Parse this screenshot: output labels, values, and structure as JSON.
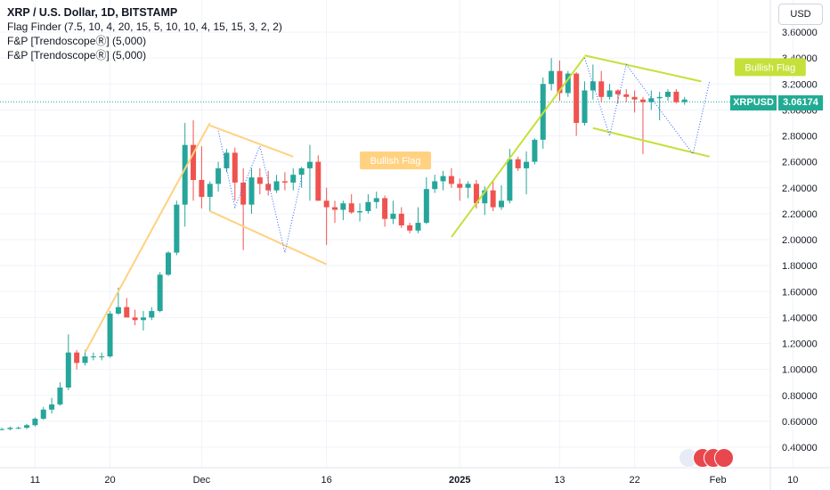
{
  "header": {
    "title": "XRP / U.S. Dollar, 1D, BITSTAMP",
    "indicators": [
      "Flag Finder (7.5, 10, 4, 20, 15, 5, 10, 10, 4, 15, 15, 3, 2, 2)",
      "F&P [TrendoscopeⓇ] (5,000)",
      "F&P [TrendoscopeⓇ] (5,000)"
    ]
  },
  "currency": "USD",
  "last_price": {
    "symbol": "XRPUSD",
    "value": "3.06174"
  },
  "colors": {
    "up": "#26a69a",
    "down": "#ef5350",
    "flag1": "#ffd180",
    "flag2": "#c6e03a",
    "last_price": "#22ab94",
    "grid": "#f0f3fa"
  },
  "chart_data": {
    "type": "candlestick",
    "title": "XRP / U.S. Dollar, 1D, BITSTAMP",
    "ylim": [
      0.3,
      4.0
    ],
    "yticks": [
      "3.60000",
      "3.40000",
      "3.20000",
      "3.00000",
      "2.80000",
      "2.60000",
      "2.40000",
      "2.20000",
      "2.00000",
      "1.80000",
      "1.60000",
      "1.40000",
      "1.20000",
      "1.00000",
      "0.80000",
      "0.60000",
      "0.40000"
    ],
    "xticks": [
      {
        "label": "11",
        "date": "2024-11-11"
      },
      {
        "label": "20",
        "date": "2024-11-20"
      },
      {
        "label": "Dec",
        "date": "2024-12-01"
      },
      {
        "label": "16",
        "date": "2024-12-16"
      },
      {
        "label": "2025",
        "date": "2025-01-01"
      },
      {
        "label": "13",
        "date": "2025-01-13"
      },
      {
        "label": "22",
        "date": "2025-01-22"
      },
      {
        "label": "Feb",
        "date": "2025-02-01"
      },
      {
        "label": "10",
        "date": "2025-02-10"
      }
    ],
    "start_date": "2024-11-07",
    "candles": [
      [
        0.54,
        0.55,
        0.53,
        0.54
      ],
      [
        0.54,
        0.56,
        0.53,
        0.55
      ],
      [
        0.55,
        0.56,
        0.54,
        0.55
      ],
      [
        0.55,
        0.58,
        0.54,
        0.57
      ],
      [
        0.57,
        0.63,
        0.56,
        0.62
      ],
      [
        0.62,
        0.71,
        0.61,
        0.69
      ],
      [
        0.69,
        0.78,
        0.66,
        0.73
      ],
      [
        0.73,
        0.9,
        0.72,
        0.86
      ],
      [
        0.86,
        1.27,
        0.84,
        1.13
      ],
      [
        1.13,
        1.15,
        1.0,
        1.05
      ],
      [
        1.05,
        1.15,
        1.03,
        1.1
      ],
      [
        1.1,
        1.13,
        1.07,
        1.1
      ],
      [
        1.1,
        1.13,
        1.07,
        1.1
      ],
      [
        1.1,
        1.45,
        1.09,
        1.43
      ],
      [
        1.43,
        1.63,
        1.42,
        1.48
      ],
      [
        1.48,
        1.55,
        1.41,
        1.4
      ],
      [
        1.4,
        1.46,
        1.34,
        1.38
      ],
      [
        1.38,
        1.45,
        1.3,
        1.4
      ],
      [
        1.4,
        1.48,
        1.38,
        1.45
      ],
      [
        1.45,
        1.75,
        1.44,
        1.73
      ],
      [
        1.73,
        1.91,
        1.72,
        1.9
      ],
      [
        1.9,
        2.3,
        1.88,
        2.27
      ],
      [
        2.27,
        2.9,
        2.1,
        2.73
      ],
      [
        2.73,
        2.92,
        2.3,
        2.46
      ],
      [
        2.46,
        2.72,
        2.24,
        2.33
      ],
      [
        2.33,
        2.45,
        2.22,
        2.43
      ],
      [
        2.43,
        2.6,
        2.37,
        2.55
      ],
      [
        2.55,
        2.7,
        2.52,
        2.67
      ],
      [
        2.67,
        2.71,
        2.3,
        2.44
      ],
      [
        2.44,
        2.55,
        1.92,
        2.27
      ],
      [
        2.27,
        2.55,
        2.2,
        2.48
      ],
      [
        2.48,
        2.55,
        2.35,
        2.43
      ],
      [
        2.43,
        2.53,
        2.34,
        2.38
      ],
      [
        2.38,
        2.5,
        2.36,
        2.45
      ],
      [
        2.45,
        2.52,
        2.38,
        2.44
      ],
      [
        2.44,
        2.55,
        2.38,
        2.5
      ],
      [
        2.5,
        2.56,
        2.4,
        2.55
      ],
      [
        2.55,
        2.73,
        2.3,
        2.6
      ],
      [
        2.6,
        2.65,
        2.3,
        2.3
      ],
      [
        2.3,
        2.4,
        1.96,
        2.25
      ],
      [
        2.25,
        2.3,
        2.13,
        2.23
      ],
      [
        2.23,
        2.3,
        2.15,
        2.28
      ],
      [
        2.28,
        2.35,
        2.2,
        2.21
      ],
      [
        2.21,
        2.28,
        2.14,
        2.22
      ],
      [
        2.22,
        2.35,
        2.2,
        2.29
      ],
      [
        2.29,
        2.37,
        2.24,
        2.32
      ],
      [
        2.32,
        2.34,
        2.1,
        2.16
      ],
      [
        2.16,
        2.3,
        2.12,
        2.2
      ],
      [
        2.2,
        2.25,
        2.09,
        2.11
      ],
      [
        2.11,
        2.13,
        2.05,
        2.07
      ],
      [
        2.07,
        2.25,
        2.05,
        2.13
      ],
      [
        2.13,
        2.48,
        2.12,
        2.39
      ],
      [
        2.39,
        2.5,
        2.36,
        2.45
      ],
      [
        2.45,
        2.53,
        2.38,
        2.49
      ],
      [
        2.49,
        2.55,
        2.4,
        2.43
      ],
      [
        2.43,
        2.47,
        2.3,
        2.4
      ],
      [
        2.4,
        2.45,
        2.32,
        2.43
      ],
      [
        2.43,
        2.46,
        2.24,
        2.28
      ],
      [
        2.28,
        2.41,
        2.19,
        2.38
      ],
      [
        2.38,
        2.45,
        2.22,
        2.25
      ],
      [
        2.25,
        2.42,
        2.23,
        2.3
      ],
      [
        2.3,
        2.7,
        2.28,
        2.62
      ],
      [
        2.62,
        2.64,
        2.53,
        2.55
      ],
      [
        2.55,
        2.68,
        2.35,
        2.6
      ],
      [
        2.6,
        2.78,
        2.58,
        2.77
      ],
      [
        2.77,
        3.25,
        2.7,
        3.2
      ],
      [
        3.2,
        3.4,
        3.15,
        3.3
      ],
      [
        3.3,
        3.38,
        3.07,
        3.13
      ],
      [
        3.13,
        3.3,
        3.1,
        3.28
      ],
      [
        3.28,
        3.29,
        2.8,
        2.9
      ],
      [
        2.9,
        3.22,
        2.88,
        3.15
      ],
      [
        3.15,
        3.35,
        3.08,
        3.22
      ],
      [
        3.22,
        3.3,
        3.06,
        3.1
      ],
      [
        3.1,
        3.2,
        3.08,
        3.15
      ],
      [
        3.15,
        3.16,
        3.05,
        3.12
      ],
      [
        3.12,
        3.16,
        3.06,
        3.1
      ],
      [
        3.1,
        3.15,
        2.98,
        3.08
      ],
      [
        3.08,
        3.1,
        2.66,
        3.06
      ],
      [
        3.06,
        3.15,
        3.0,
        3.09
      ],
      [
        3.09,
        3.14,
        2.92,
        3.1
      ],
      [
        3.1,
        3.16,
        3.07,
        3.14
      ],
      [
        3.14,
        3.16,
        3.05,
        3.06
      ],
      [
        3.06,
        3.1,
        3.04,
        3.08
      ]
    ],
    "flags": [
      {
        "label": "Bullish Flag",
        "color": "#ffd180",
        "pole": [
          [
            "2024-11-17",
            1.13
          ],
          [
            "2024-12-02",
            2.9
          ]
        ],
        "upper": [
          [
            "2024-12-02",
            2.88
          ],
          [
            "2024-12-12",
            2.64
          ]
        ],
        "lower": [
          [
            "2024-12-02",
            2.22
          ],
          [
            "2024-12-16",
            1.81
          ]
        ],
        "zigzag": [
          [
            "2024-12-03",
            2.84
          ],
          [
            "2024-12-05",
            2.25
          ],
          [
            "2024-12-08",
            2.72
          ],
          [
            "2024-12-11",
            1.9
          ],
          [
            "2024-12-13",
            2.48
          ]
        ],
        "label_at": [
          "2024-12-20",
          2.61
        ]
      },
      {
        "label": "Bullish Flag",
        "color": "#c6e03a",
        "pole": [
          [
            "2024-12-31",
            2.02
          ],
          [
            "2025-01-16",
            3.41
          ]
        ],
        "upper": [
          [
            "2025-01-16",
            3.42
          ],
          [
            "2025-01-30",
            3.22
          ]
        ],
        "lower": [
          [
            "2025-01-17",
            2.86
          ],
          [
            "2025-01-31",
            2.64
          ]
        ],
        "zigzag": [
          [
            "2025-01-16",
            3.4
          ],
          [
            "2025-01-19",
            2.8
          ],
          [
            "2025-01-21",
            3.35
          ],
          [
            "2025-01-29",
            2.66
          ],
          [
            "2025-01-31",
            3.22
          ]
        ],
        "label_at": [
          "2025-02-03",
          3.33
        ]
      }
    ]
  }
}
